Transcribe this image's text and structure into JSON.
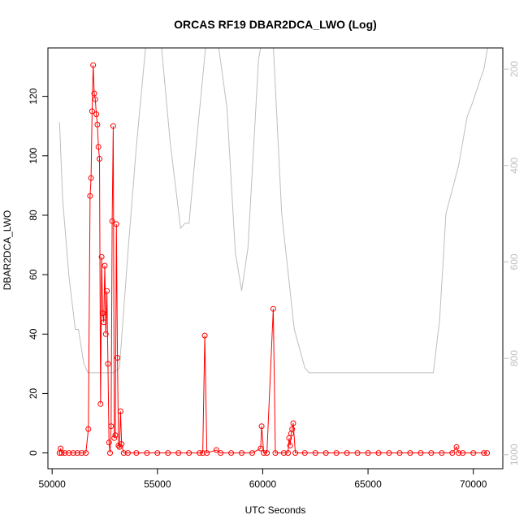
{
  "chart_data": {
    "type": "line",
    "title": "ORCAS RF19 DBAR2DCA_LWO (Log)",
    "xlabel": "UTC Seconds",
    "ylabel": "DBAR2DCA_LWO",
    "xlim": [
      49800,
      71400
    ],
    "ylim": [
      -5.3,
      136.3
    ],
    "x_ticks": [
      50000,
      55000,
      60000,
      65000,
      70000
    ],
    "y_ticks": [
      0,
      20,
      40,
      60,
      80,
      100,
      120
    ],
    "y2_ticks": [
      200,
      400,
      600,
      800,
      1000
    ],
    "y2_range_at_ylim": [
      1029,
      156
    ],
    "grid": false,
    "legend": "none",
    "series": [
      {
        "role": "data",
        "color": "#ff0000",
        "marker": "open-circle",
        "points": [
          [
            50350,
            0
          ],
          [
            50400,
            1.5
          ],
          [
            50450,
            0
          ],
          [
            50600,
            0
          ],
          [
            50800,
            0
          ],
          [
            51000,
            0
          ],
          [
            51200,
            0
          ],
          [
            51400,
            0
          ],
          [
            51600,
            0
          ],
          [
            51720,
            8
          ],
          [
            51800,
            86.5
          ],
          [
            51850,
            92.5
          ],
          [
            51900,
            115
          ],
          [
            51950,
            130.5
          ],
          [
            52000,
            121
          ],
          [
            52050,
            119
          ],
          [
            52100,
            114
          ],
          [
            52150,
            110.5
          ],
          [
            52200,
            103
          ],
          [
            52250,
            99
          ],
          [
            52300,
            16.5
          ],
          [
            52350,
            66
          ],
          [
            52400,
            47
          ],
          [
            52450,
            44
          ],
          [
            52500,
            63
          ],
          [
            52550,
            40
          ],
          [
            52600,
            54.5
          ],
          [
            52650,
            30
          ],
          [
            52700,
            3.5
          ],
          [
            52750,
            0
          ],
          [
            52800,
            9
          ],
          [
            52850,
            78
          ],
          [
            52900,
            110
          ],
          [
            52950,
            5
          ],
          [
            53000,
            6
          ],
          [
            53050,
            77
          ],
          [
            53100,
            32
          ],
          [
            53150,
            2.5
          ],
          [
            53200,
            2
          ],
          [
            53250,
            14
          ],
          [
            53300,
            3
          ],
          [
            53400,
            0
          ],
          [
            53600,
            0
          ],
          [
            54000,
            0
          ],
          [
            54500,
            0
          ],
          [
            55000,
            0
          ],
          [
            55500,
            0
          ],
          [
            56000,
            0
          ],
          [
            56500,
            0
          ],
          [
            57000,
            0
          ],
          [
            57150,
            0
          ],
          [
            57250,
            39.5
          ],
          [
            57350,
            0
          ],
          [
            57800,
            1
          ],
          [
            58000,
            0
          ],
          [
            58500,
            0
          ],
          [
            59000,
            0
          ],
          [
            59500,
            0
          ],
          [
            59900,
            1.5
          ],
          [
            59950,
            9
          ],
          [
            60050,
            0
          ],
          [
            60200,
            0
          ],
          [
            60500,
            48.5
          ],
          [
            60600,
            0
          ],
          [
            61000,
            0
          ],
          [
            61200,
            0
          ],
          [
            61250,
            5
          ],
          [
            61300,
            2.5
          ],
          [
            61350,
            6.5
          ],
          [
            61400,
            8
          ],
          [
            61450,
            10
          ],
          [
            61550,
            0
          ],
          [
            62000,
            0
          ],
          [
            62500,
            0
          ],
          [
            63000,
            0
          ],
          [
            63500,
            0
          ],
          [
            64000,
            0
          ],
          [
            64500,
            0
          ],
          [
            65000,
            0
          ],
          [
            65500,
            0
          ],
          [
            66000,
            0
          ],
          [
            66500,
            0
          ],
          [
            67000,
            0
          ],
          [
            67500,
            0
          ],
          [
            68000,
            0
          ],
          [
            68500,
            0
          ],
          [
            69000,
            0
          ],
          [
            69200,
            2
          ],
          [
            69300,
            0
          ],
          [
            69500,
            0
          ],
          [
            70000,
            0
          ],
          [
            70500,
            0
          ],
          [
            70650,
            0
          ]
        ]
      },
      {
        "role": "pressure-right-axis",
        "color": "#bebebe",
        "marker": "none",
        "points": [
          [
            50350,
            310
          ],
          [
            50500,
            470
          ],
          [
            50800,
            630
          ],
          [
            51100,
            740
          ],
          [
            51250,
            740
          ],
          [
            51500,
            810
          ],
          [
            51700,
            830
          ],
          [
            52900,
            830
          ],
          [
            53200,
            820
          ],
          [
            53600,
            580
          ],
          [
            54000,
            360
          ],
          [
            54600,
            80
          ],
          [
            55000,
            60
          ],
          [
            55600,
            350
          ],
          [
            56100,
            530
          ],
          [
            56300,
            520
          ],
          [
            56500,
            520
          ],
          [
            56900,
            330
          ],
          [
            57300,
            150
          ],
          [
            57800,
            120
          ],
          [
            58300,
            280
          ],
          [
            58700,
            580
          ],
          [
            59000,
            660
          ],
          [
            59300,
            570
          ],
          [
            59800,
            180
          ],
          [
            60200,
            80
          ],
          [
            60500,
            150
          ],
          [
            60900,
            500
          ],
          [
            61500,
            740
          ],
          [
            62000,
            820
          ],
          [
            62200,
            830
          ],
          [
            68100,
            830
          ],
          [
            68400,
            720
          ],
          [
            68700,
            500
          ],
          [
            69300,
            400
          ],
          [
            69700,
            300
          ],
          [
            70000,
            265
          ],
          [
            70300,
            225
          ],
          [
            70500,
            200
          ],
          [
            70700,
            150
          ]
        ]
      }
    ]
  }
}
